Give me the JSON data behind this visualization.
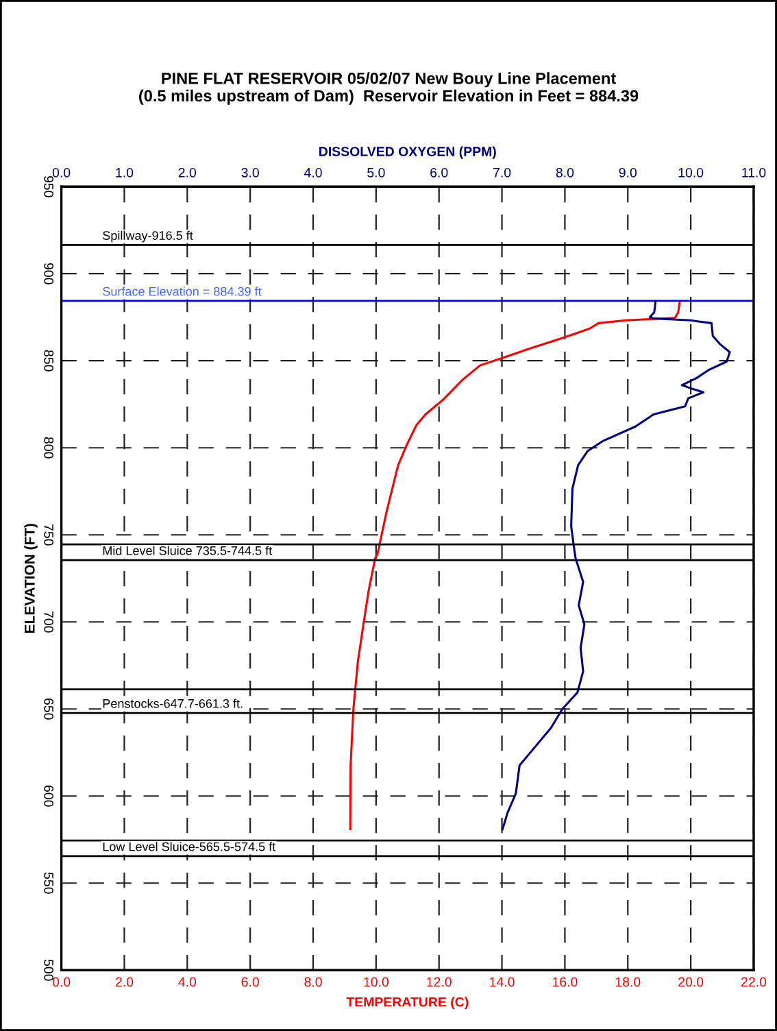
{
  "chart_data": {
    "type": "line",
    "title": "PINE FLAT RESERVOIR 05/02/07 New Bouy Line Placement\n(0.5 miles upstream of Dam)  Reservoir Elevation in Feet = 884.39",
    "xlabel": "TEMPERATURE (C)",
    "x2label": "DISSOLVED OXYGEN (PPM)",
    "ylabel": "ELEVATION (FT)",
    "series": [
      {
        "color": "#ff0000",
        "x": [
          19.65,
          19.6,
          19.5,
          17.94,
          17.07,
          16.78,
          15.91,
          14.75,
          13.88,
          13.3,
          12.72,
          12.14,
          11.57,
          11.28,
          10.99,
          10.7,
          10.33,
          10.04,
          9.97,
          9.76,
          9.61,
          9.42,
          9.28,
          9.19,
          9.18
        ],
        "values": [
          884,
          877.8,
          874.6,
          873.2,
          871.6,
          868.4,
          863,
          856.2,
          850.8,
          847.3,
          838.6,
          827.8,
          819.2,
          813,
          802.2,
          790,
          763,
          738.6,
          736.5,
          717.6,
          700,
          677,
          650,
          617.6,
          581
        ]
      },
      {
        "color": "#000080",
        "axis": "x2",
        "x": [
          9.44,
          9.42,
          9.35,
          9.4,
          9.99,
          10.33,
          10.35,
          10.46,
          10.62,
          10.57,
          10.28,
          10.09,
          9.86,
          9.99,
          10.2,
          9.96,
          9.91,
          9.41,
          9.12,
          8.61,
          8.36,
          8.21,
          8.12,
          8.1,
          8.14,
          8.17,
          8.29,
          8.22,
          8.31,
          8.25,
          8.29,
          8.2,
          7.96,
          7.78,
          7.53,
          7.28,
          7.22,
          7.09,
          7.01
        ],
        "values": [
          884,
          877.8,
          875.1,
          874.3,
          873.2,
          871.6,
          864.3,
          859.7,
          854.9,
          849.5,
          844.6,
          840,
          836,
          834.3,
          831.9,
          828.4,
          823.8,
          819.2,
          812.2,
          804,
          798.1,
          790,
          776.5,
          754.9,
          744,
          736.5,
          723,
          709.5,
          698.6,
          685,
          671.6,
          659.5,
          650,
          639.2,
          628.4,
          617.6,
          601.4,
          590.5,
          581
        ]
      }
    ],
    "xlim": [
      0,
      22
    ],
    "xticks": [
      {
        "value": 0,
        "label": "0.0"
      },
      {
        "value": 2,
        "label": "2.0"
      },
      {
        "value": 4,
        "label": "4.0"
      },
      {
        "value": 6,
        "label": "6.0"
      },
      {
        "value": 8,
        "label": "8.0"
      },
      {
        "value": 10,
        "label": "10.0"
      },
      {
        "value": 12,
        "label": "12.0"
      },
      {
        "value": 14,
        "label": "14.0"
      },
      {
        "value": 16,
        "label": "16.0"
      },
      {
        "value": 18,
        "label": "18.0"
      },
      {
        "value": 20,
        "label": "20.0"
      },
      {
        "value": 22,
        "label": "22.0"
      }
    ],
    "x2lim": [
      0,
      11
    ],
    "x2ticks": [
      {
        "value": 0,
        "label": "0.0"
      },
      {
        "value": 1,
        "label": "1.0"
      },
      {
        "value": 2,
        "label": "2.0"
      },
      {
        "value": 3,
        "label": "3.0"
      },
      {
        "value": 4,
        "label": "4.0"
      },
      {
        "value": 5,
        "label": "5.0"
      },
      {
        "value": 6,
        "label": "6.0"
      },
      {
        "value": 7,
        "label": "7.0"
      },
      {
        "value": 8,
        "label": "8.0"
      },
      {
        "value": 9,
        "label": "9.0"
      },
      {
        "value": 10,
        "label": "10.0"
      },
      {
        "value": 11,
        "label": "11.0"
      }
    ],
    "ylim": [
      500,
      950
    ],
    "yticks": [
      500,
      550,
      600,
      650,
      700,
      750,
      800,
      850,
      900,
      950
    ],
    "grid": true,
    "line_style": "solid",
    "marker": "none",
    "ref_lines": [
      {
        "axis": "y",
        "value": 916.5,
        "label": "Spillway-916.5 ft",
        "color": "#000000"
      },
      {
        "axis": "y",
        "value": 884.39,
        "label": "Surface Elevation = 884.39 ft",
        "color": "#0000ff"
      },
      {
        "axis": "y",
        "value": 744.5,
        "color": "#000000"
      },
      {
        "axis": "y",
        "value": 735.5,
        "label": "Mid Level Sluice 735.5-744.5 ft",
        "color": "#000000"
      },
      {
        "axis": "y",
        "value": 661.3,
        "color": "#000000"
      },
      {
        "axis": "y",
        "value": 647.7,
        "label": "Penstocks-647.7-661.3 ft.",
        "color": "#000000"
      },
      {
        "axis": "y",
        "value": 574.5,
        "color": "#000000"
      },
      {
        "axis": "y",
        "value": 565.5,
        "label": "Low Level Sluice-565.5-574.5 ft",
        "color": "#000000"
      }
    ]
  }
}
